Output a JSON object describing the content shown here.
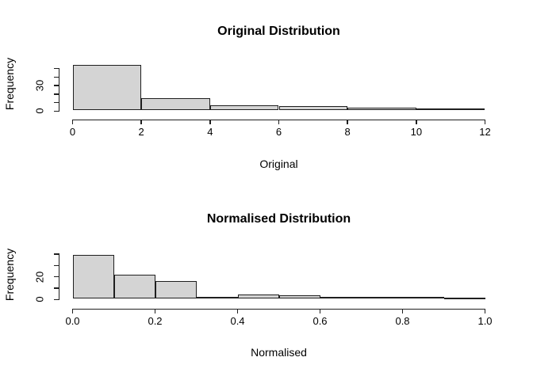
{
  "figure": {
    "background": "#ffffff",
    "bar_fill": "#d4d4d4",
    "bar_border": "#1f1f1f",
    "axis_color": "#1f1f1f",
    "text_color": "#000000"
  },
  "chart_data": [
    {
      "type": "bar",
      "variant": "histogram",
      "title": "Original Distribution",
      "xlabel": "Original",
      "ylabel": "Frequency",
      "xlim": [
        0,
        12
      ],
      "ylim": [
        0,
        50
      ],
      "grid": false,
      "legend": "none",
      "bin_edges": [
        0,
        2,
        4,
        6,
        8,
        10,
        12
      ],
      "counts": [
        54,
        14,
        6,
        5,
        3,
        2
      ],
      "x_ticks": [
        {
          "value": 0,
          "label": "0"
        },
        {
          "value": 2,
          "label": "2"
        },
        {
          "value": 4,
          "label": "4"
        },
        {
          "value": 6,
          "label": "6"
        },
        {
          "value": 8,
          "label": "8"
        },
        {
          "value": 10,
          "label": "10"
        },
        {
          "value": 12,
          "label": "12"
        }
      ],
      "y_ticks": [
        {
          "value": 0,
          "label": "0"
        },
        {
          "value": 10,
          "label": ""
        },
        {
          "value": 20,
          "label": ""
        },
        {
          "value": 30,
          "label": "30"
        },
        {
          "value": 40,
          "label": ""
        },
        {
          "value": 50,
          "label": ""
        }
      ]
    },
    {
      "type": "bar",
      "variant": "histogram",
      "title": "Normalised Distribution",
      "xlabel": "Normalised",
      "ylabel": "Frequency",
      "xlim": [
        0,
        1
      ],
      "ylim": [
        0,
        40
      ],
      "grid": false,
      "legend": "none",
      "bin_edges": [
        0,
        0.1,
        0.2,
        0.3,
        0.4,
        0.5,
        0.6,
        0.7,
        0.8,
        0.9,
        1.0
      ],
      "counts": [
        39,
        21,
        16,
        2,
        4,
        3,
        2,
        2,
        2,
        1
      ],
      "x_ticks": [
        {
          "value": 0.0,
          "label": "0.0"
        },
        {
          "value": 0.2,
          "label": "0.2"
        },
        {
          "value": 0.4,
          "label": "0.4"
        },
        {
          "value": 0.6,
          "label": "0.6"
        },
        {
          "value": 0.8,
          "label": "0.8"
        },
        {
          "value": 1.0,
          "label": "1.0"
        }
      ],
      "y_ticks": [
        {
          "value": 0,
          "label": "0"
        },
        {
          "value": 10,
          "label": ""
        },
        {
          "value": 20,
          "label": "20"
        },
        {
          "value": 30,
          "label": ""
        },
        {
          "value": 40,
          "label": ""
        }
      ]
    }
  ]
}
